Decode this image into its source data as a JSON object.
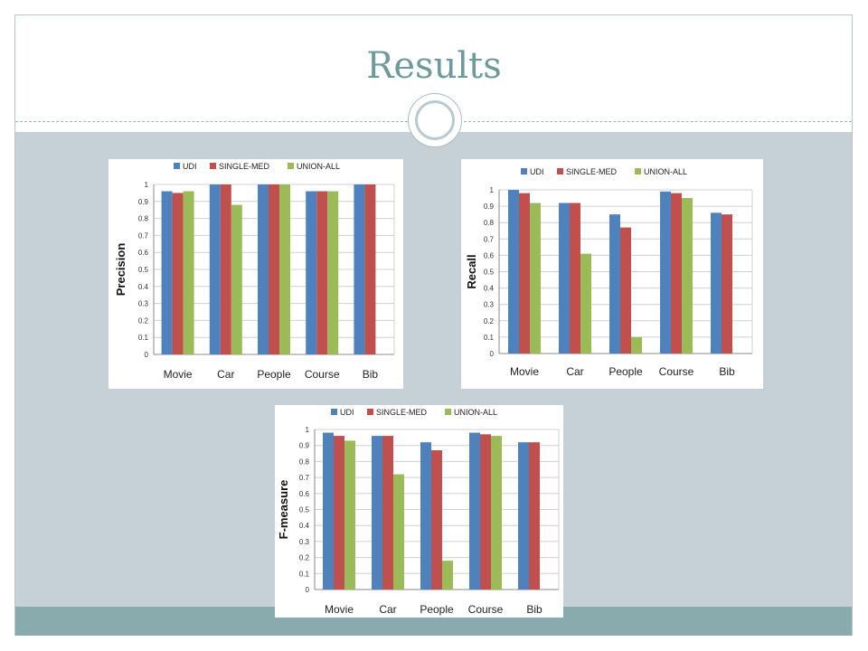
{
  "slide": {
    "title": "Results",
    "colors": {
      "title": "#6e9a9c",
      "content_band": "#c5d1d7",
      "footer_band": "#8aabad"
    }
  },
  "chart_data": [
    {
      "type": "bar",
      "ylabel": "Precision",
      "categories": [
        "Movie",
        "Car",
        "People",
        "Course",
        "Bib"
      ],
      "yticks": [
        "0",
        "0.1",
        "0.2",
        "0.3",
        "0.4",
        "0.5",
        "0.6",
        "0.7",
        "0.8",
        "0.9",
        "1"
      ],
      "ylim": [
        0,
        1
      ],
      "legend_position": "top",
      "grid": true,
      "series": [
        {
          "name": "UDI",
          "color": "#4f81bd",
          "values": [
            0.96,
            1.0,
            1.0,
            0.96,
            1.0
          ]
        },
        {
          "name": "SINGLE-MED",
          "color": "#c0504d",
          "values": [
            0.95,
            1.0,
            1.0,
            0.96,
            1.0
          ]
        },
        {
          "name": "UNION-ALL",
          "color": "#9bbb59",
          "values": [
            0.96,
            0.88,
            1.0,
            0.96,
            null
          ]
        }
      ]
    },
    {
      "type": "bar",
      "ylabel": "Recall",
      "categories": [
        "Movie",
        "Car",
        "People",
        "Course",
        "Bib"
      ],
      "yticks": [
        "0",
        "0.1",
        "0.2",
        "0.3",
        "0.4",
        "0.5",
        "0.6",
        "0.7",
        "0.8",
        "0.9",
        "1"
      ],
      "ylim": [
        0,
        1
      ],
      "legend_position": "top",
      "grid": true,
      "series": [
        {
          "name": "UDI",
          "color": "#4f81bd",
          "values": [
            1.0,
            0.92,
            0.85,
            0.99,
            0.86
          ]
        },
        {
          "name": "SINGLE-MED",
          "color": "#c0504d",
          "values": [
            0.98,
            0.92,
            0.77,
            0.98,
            0.85
          ]
        },
        {
          "name": "UNION-ALL",
          "color": "#9bbb59",
          "values": [
            0.92,
            0.61,
            0.1,
            0.95,
            null
          ]
        }
      ]
    },
    {
      "type": "bar",
      "ylabel": "F-measure",
      "categories": [
        "Movie",
        "Car",
        "People",
        "Course",
        "Bib"
      ],
      "yticks": [
        "0",
        "0.1",
        "0.2",
        "0.3",
        "0.4",
        "0.5",
        "0.6",
        "0.7",
        "0.8",
        "0.9",
        "1"
      ],
      "ylim": [
        0,
        1
      ],
      "legend_position": "top",
      "grid": true,
      "series": [
        {
          "name": "UDI",
          "color": "#4f81bd",
          "values": [
            0.98,
            0.96,
            0.92,
            0.98,
            0.92
          ]
        },
        {
          "name": "SINGLE-MED",
          "color": "#c0504d",
          "values": [
            0.96,
            0.96,
            0.87,
            0.97,
            0.92
          ]
        },
        {
          "name": "UNION-ALL",
          "color": "#9bbb59",
          "values": [
            0.93,
            0.72,
            0.18,
            0.96,
            null
          ]
        }
      ]
    }
  ]
}
